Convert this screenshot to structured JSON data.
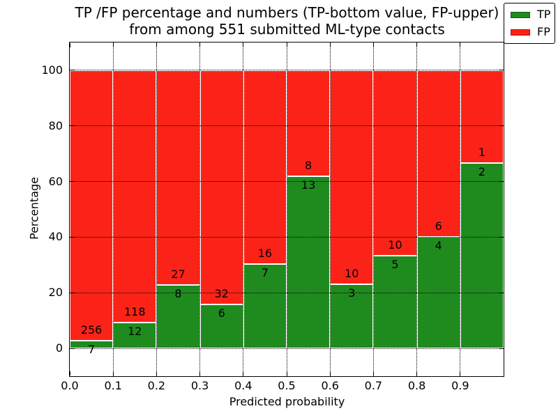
{
  "title": {
    "line1": "TP /FP percentage and numbers (TP-bottom value, FP-upper)",
    "line2": "from among 551 submitted ML-type contacts"
  },
  "chart_data": {
    "type": "bar",
    "subtype": "stacked-100-percent",
    "title": "TP /FP percentage and numbers (TP-bottom value, FP-upper) from among 551 submitted ML-type contacts",
    "xlabel": "Predicted probability",
    "ylabel": "Percentage",
    "total_contacts": 551,
    "bins": [
      "0.0-0.1",
      "0.1-0.2",
      "0.2-0.3",
      "0.3-0.4",
      "0.4-0.5",
      "0.5-0.6",
      "0.6-0.7",
      "0.7-0.8",
      "0.8-0.9",
      "0.9-1.0"
    ],
    "series": [
      {
        "name": "TP",
        "color": "#1f8b1f",
        "counts": [
          7,
          12,
          8,
          6,
          7,
          13,
          3,
          5,
          4,
          2
        ]
      },
      {
        "name": "FP",
        "color": "#fb2318",
        "counts": [
          256,
          118,
          27,
          32,
          16,
          8,
          10,
          10,
          6,
          1
        ]
      }
    ],
    "tp_percent": [
      2.66,
      9.23,
      22.86,
      15.79,
      30.43,
      61.9,
      23.08,
      33.33,
      40.0,
      66.67
    ],
    "x_ticks": [
      "0.0",
      "0.1",
      "0.2",
      "0.3",
      "0.4",
      "0.5",
      "0.6",
      "0.7",
      "0.8",
      "0.9"
    ],
    "y_ticks": [
      0,
      20,
      40,
      60,
      80,
      100
    ],
    "xlim": [
      0.0,
      1.0
    ],
    "ylim": [
      -10,
      110
    ],
    "grid": "dotted",
    "legend_position": "upper right",
    "bar_edge_color": "#ffffff",
    "label_color": "#000000"
  }
}
